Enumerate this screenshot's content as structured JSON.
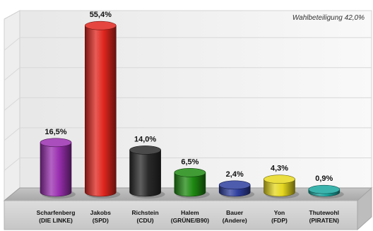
{
  "chart_data": {
    "type": "bar",
    "title": "",
    "annotation": "Wahlbeteiligung 42,0%",
    "xlabel": "",
    "ylabel": "",
    "ylim": [
      0,
      60
    ],
    "grid": true,
    "legend": "none",
    "categories": [
      "Scharfenberg\n(DIE LINKE)",
      "Jakobs\n(SPD)",
      "Richstein\n(CDU)",
      "Halem\n(GRÜNE/B90)",
      "Bauer\n(Andere)",
      "Yon\n(FDP)",
      "Thutewohl\n(PIRATEN)"
    ],
    "values": [
      16.5,
      55.4,
      14.0,
      6.5,
      2.4,
      4.3,
      0.9
    ],
    "value_labels": [
      "16,5%",
      "55,4%",
      "14,0%",
      "6,5%",
      "2,4%",
      "4,3%",
      "0,9%"
    ],
    "colors": [
      "#9a2fb0",
      "#e0261e",
      "#2a2a2a",
      "#1f8a12",
      "#2f3f9e",
      "#e6d81e",
      "#1aa7a0"
    ]
  }
}
